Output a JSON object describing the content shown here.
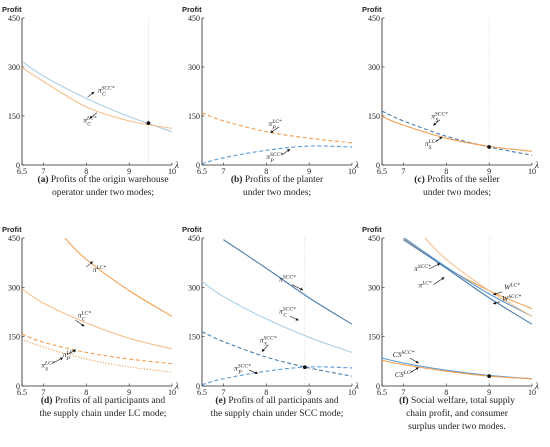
{
  "colors": {
    "orange": "#f0a050",
    "light_orange": "#f5c08a",
    "blue": "#5b9bd5",
    "light_blue": "#a9cfe6",
    "steel_blue": "#4a7fb0",
    "dot": "#111111"
  },
  "chart_data": [
    {
      "type": "line",
      "caption_label": "(a)",
      "caption": [
        "Profits of the origin warehouse",
        "operator under two modes;"
      ],
      "ylabel": "Profit",
      "xlabel": "λ",
      "xlim": [
        6.5,
        10
      ],
      "ylim": [
        0,
        450
      ],
      "xticks": [
        "6.5",
        "7",
        "8",
        "9",
        "10"
      ],
      "yticks": [
        "0",
        "150",
        "300",
        "450"
      ],
      "series": [
        {
          "id": "pi_C_SCC",
          "annotation": "π_C^{SCC*}",
          "style": "solid",
          "color": "light_blue",
          "x": [
            6.5,
            7,
            8,
            9,
            10
          ],
          "y": [
            318,
            272,
            204,
            148,
            102
          ]
        },
        {
          "id": "pi_C_LC",
          "annotation": "π_C^{LC*}",
          "style": "solid",
          "color": "light_orange",
          "x": [
            6.5,
            7,
            8,
            9,
            10
          ],
          "y": [
            298,
            256,
            178,
            135,
            112
          ]
        }
      ],
      "point": {
        "x": 9.45,
        "y": 128
      },
      "vref": 9.45,
      "labels": [
        {
          "text": "π",
          "sup": "SCC*",
          "sub": "C",
          "ax": 8.27,
          "ay": 222,
          "arrow": [
            8.03,
            208,
            8.18,
            223
          ]
        },
        {
          "text": "π",
          "sup": "LC*",
          "sub": "C",
          "ax": 7.93,
          "ay": 130,
          "arrow": [
            8.25,
            160,
            8.08,
            143
          ]
        }
      ]
    },
    {
      "type": "line",
      "caption_label": "(b)",
      "caption": [
        "Profits of the planter",
        "under two modes;"
      ],
      "ylabel": "Profit",
      "xlabel": "λ",
      "xlim": [
        6.5,
        10
      ],
      "ylim": [
        0,
        450
      ],
      "xticks": [
        "6.5",
        "7",
        "8",
        "9",
        "10"
      ],
      "yticks": [
        "0",
        "150",
        "300",
        "450"
      ],
      "series": [
        {
          "id": "pi_P_LC",
          "annotation": "π_P^{LC*}",
          "style": "dashed",
          "color": "orange",
          "x": [
            6.5,
            7,
            8,
            9,
            10
          ],
          "y": [
            160,
            135,
            102,
            82,
            68
          ]
        },
        {
          "id": "pi_P_SCC",
          "annotation": "π_P^{SCC*}",
          "style": "dashed",
          "color": "blue",
          "x": [
            6.5,
            7,
            8,
            9,
            10
          ],
          "y": [
            4,
            22,
            45,
            58,
            55
          ]
        }
      ],
      "labels": [
        {
          "text": "π",
          "sup": "LC*",
          "sub": "P",
          "ax": 8.05,
          "ay": 120,
          "arrow": [
            8.3,
            117,
            8.1,
            99
          ]
        },
        {
          "text": "π",
          "sup": "SCC*",
          "sub": "P",
          "ax": 8.0,
          "ay": 18,
          "arrow": [
            8.35,
            30,
            8.55,
            48
          ]
        }
      ]
    },
    {
      "type": "line",
      "caption_label": "(c)",
      "caption": [
        "Profits of the seller",
        "under two modes;"
      ],
      "ylabel": "Profit",
      "xlabel": "λ",
      "xlim": [
        6.5,
        10
      ],
      "ylim": [
        0,
        450
      ],
      "xticks": [
        "6.5",
        "7",
        "8",
        "9",
        "10"
      ],
      "yticks": [
        "0",
        "150",
        "300",
        "450"
      ],
      "series": [
        {
          "id": "pi_S_SCC",
          "annotation": "π_S^{SCC*}",
          "style": "dashed",
          "color": "steel_blue",
          "x": [
            6.5,
            7,
            8,
            9,
            10
          ],
          "y": [
            165,
            135,
            88,
            55,
            30
          ]
        },
        {
          "id": "pi_S_LC",
          "annotation": "π_S^{LC*}",
          "style": "solid",
          "color": "orange",
          "x": [
            6.5,
            7,
            8,
            9,
            10
          ],
          "y": [
            148,
            122,
            82,
            57,
            42
          ]
        }
      ],
      "point": {
        "x": 9.0,
        "y": 55
      },
      "vref": 9.0,
      "labels": [
        {
          "text": "π",
          "sup": "SCC*",
          "sub": "S",
          "ax": 7.65,
          "ay": 143,
          "arrow": [
            7.85,
            138,
            7.7,
            122
          ]
        },
        {
          "text": "π",
          "sup": "LC*",
          "sub": "S",
          "ax": 7.5,
          "ay": 58,
          "arrow": [
            7.75,
            70,
            7.9,
            86
          ]
        }
      ]
    },
    {
      "type": "line",
      "caption_label": "(d)",
      "caption": [
        "Profits of all participants and",
        "the supply chain under LC mode;"
      ],
      "ylabel": "Profit",
      "xlabel": "λ",
      "xlim": [
        6.5,
        10
      ],
      "ylim": [
        0,
        450
      ],
      "xticks": [
        "6.5",
        "7",
        "8",
        "9",
        "10"
      ],
      "yticks": [
        "0",
        "150",
        "300",
        "450"
      ],
      "series": [
        {
          "id": "pi_LC",
          "annotation": "π^{LC*}",
          "style": "solid",
          "color": "orange",
          "x": [
            7.5,
            8,
            9,
            10
          ],
          "y": [
            450,
            385,
            290,
            212
          ]
        },
        {
          "id": "pi_C_LC_d",
          "annotation": "π_C^{LC*}",
          "style": "solid",
          "color": "light_orange",
          "x": [
            6.5,
            7,
            8,
            9,
            10
          ],
          "y": [
            295,
            252,
            192,
            145,
            113
          ]
        },
        {
          "id": "pi_P_LC_d",
          "annotation": "π_P^{LC*}",
          "style": "dashed",
          "color": "orange",
          "x": [
            6.5,
            7,
            8,
            9,
            10
          ],
          "y": [
            158,
            133,
            102,
            82,
            68
          ]
        },
        {
          "id": "pi_S_LC_d",
          "annotation": "π_S^{LC*}",
          "style": "dotted",
          "color": "orange",
          "x": [
            6.5,
            7,
            8,
            9,
            10
          ],
          "y": [
            142,
            118,
            82,
            58,
            42
          ]
        }
      ],
      "labels": [
        {
          "text": "π",
          "sup": "LC*",
          "sub": "",
          "ax": 8.15,
          "ay": 347,
          "arrow": [
            8.0,
            362,
            8.15,
            378
          ]
        },
        {
          "text": "π",
          "sup": "LC*",
          "sub": "C",
          "ax": 7.8,
          "ay": 208,
          "arrow": [
            7.75,
            200,
            7.95,
            182
          ]
        },
        {
          "text": "π",
          "sup": "LC*",
          "sub": "P",
          "ax": 7.45,
          "ay": 88,
          "arrow": [
            7.55,
            95,
            7.75,
            110
          ]
        },
        {
          "text": "π",
          "sup": "LC*",
          "sub": "S",
          "ax": 6.95,
          "ay": 56,
          "arrow": [
            7.2,
            68,
            7.45,
            86
          ]
        }
      ]
    },
    {
      "type": "line",
      "caption_label": "(e)",
      "caption": [
        "Profits of all participants and",
        "the supply chain under SCC mode;"
      ],
      "ylabel": "Profit",
      "xlabel": "λ",
      "xlim": [
        6.5,
        10
      ],
      "ylim": [
        0,
        450
      ],
      "xticks": [
        "6.5",
        "7",
        "8",
        "9",
        "10"
      ],
      "yticks": [
        "0",
        "150",
        "300",
        "450"
      ],
      "series": [
        {
          "id": "pi_SCC",
          "annotation": "π^{SCC*}",
          "style": "solid",
          "color": "steel_blue",
          "x": [
            7,
            8,
            9,
            10
          ],
          "y": [
            445,
            358,
            268,
            188
          ]
        },
        {
          "id": "pi_C_SCC_e",
          "annotation": "π_C^{SCC*}",
          "style": "solid",
          "color": "light_blue",
          "x": [
            6.5,
            7,
            8,
            9,
            10
          ],
          "y": [
            318,
            272,
            204,
            148,
            102
          ]
        },
        {
          "id": "pi_S_SCC_e",
          "annotation": "π_S^{SCC*}",
          "style": "dashed",
          "color": "steel_blue",
          "x": [
            6.5,
            7,
            8,
            9,
            10
          ],
          "y": [
            165,
            135,
            88,
            55,
            30
          ]
        },
        {
          "id": "pi_P_SCC_e",
          "annotation": "π_P^{SCC*}",
          "style": "dashed",
          "color": "blue",
          "x": [
            6.5,
            7,
            8,
            9,
            10
          ],
          "y": [
            4,
            22,
            45,
            58,
            55
          ]
        }
      ],
      "point": {
        "x": 8.9,
        "y": 57
      },
      "vref": 8.9,
      "labels": [
        {
          "text": "π",
          "sup": "SCC*",
          "sub": "",
          "ax": 8.3,
          "ay": 318,
          "arrow": [
            8.6,
            308,
            8.85,
            292
          ]
        },
        {
          "text": "π",
          "sup": "SCC*",
          "sub": "C",
          "ax": 8.3,
          "ay": 220,
          "arrow": [
            8.55,
            212,
            8.75,
            200
          ]
        },
        {
          "text": "π",
          "sup": "SCC*",
          "sub": "S",
          "ax": 7.85,
          "ay": 133,
          "arrow": [
            8.05,
            125,
            7.9,
            105
          ]
        },
        {
          "text": "π",
          "sup": "SCC*",
          "sub": "P",
          "ax": 7.25,
          "ay": 47,
          "arrow": [
            7.6,
            48,
            7.8,
            38
          ]
        }
      ]
    },
    {
      "type": "line",
      "caption_label": "(f)",
      "caption": [
        "Social welfare, total supply",
        "chain profit, and consumer",
        "surplus under two modes."
      ],
      "ylabel": "Profit",
      "xlabel": "λ",
      "xlim": [
        6.5,
        10
      ],
      "ylim": [
        0,
        450
      ],
      "xticks": [
        "6.5",
        "7",
        "8",
        "9",
        "10"
      ],
      "yticks": [
        "0",
        "150",
        "300",
        "450"
      ],
      "series": [
        {
          "id": "W_LC",
          "annotation": "W^{LC*}",
          "style": "solid",
          "color": "orange",
          "x": [
            7,
            8,
            9,
            10
          ],
          "y": [
            450,
            360,
            290,
            235
          ]
        },
        {
          "id": "W_SCC",
          "annotation": "W^{SCC*}",
          "style": "solid",
          "color": "blue",
          "x": [
            7,
            8,
            9,
            10
          ],
          "y": [
            452,
            362,
            280,
            212
          ]
        },
        {
          "id": "pi_SCC_f",
          "annotation": "π^{SCC*}",
          "style": "solid",
          "color": "steel_blue",
          "x": [
            7,
            8,
            9,
            10
          ],
          "y": [
            445,
            358,
            268,
            188
          ]
        },
        {
          "id": "pi_LC_f",
          "annotation": "π^{LC*}",
          "style": "solid",
          "color": "light_orange",
          "x": [
            7.5,
            8,
            9,
            10
          ],
          "y": [
            450,
            385,
            290,
            212
          ]
        },
        {
          "id": "CS_SCC",
          "annotation": "CS^{SCC*}",
          "style": "solid",
          "color": "blue",
          "x": [
            6.5,
            7,
            8,
            9,
            10
          ],
          "y": [
            85,
            70,
            48,
            32,
            22
          ]
        },
        {
          "id": "CS_LC",
          "annotation": "CS^{LC*}",
          "style": "solid",
          "color": "orange",
          "x": [
            6.5,
            7,
            8,
            9,
            10
          ],
          "y": [
            78,
            65,
            45,
            30,
            22
          ]
        }
      ],
      "point": {
        "x": 9.0,
        "y": 30
      },
      "vref": 9.0,
      "labels": [
        {
          "text": "π",
          "sup": "SCC*",
          "sub": "",
          "ax": 7.25,
          "ay": 350,
          "arrow": [
            7.6,
            356,
            7.85,
            372
          ]
        },
        {
          "text": "π",
          "sup": "LC*",
          "sub": "",
          "ax": 7.35,
          "ay": 300,
          "arrow": [
            7.7,
            308,
            7.95,
            330
          ]
        },
        {
          "text": "W",
          "sup": "LC*",
          "sub": "",
          "ax": 9.35,
          "ay": 293,
          "arrow": [
            9.3,
            286,
            9.1,
            278
          ]
        },
        {
          "text": "W",
          "sup": "SCC*",
          "sub": "",
          "ax": 9.3,
          "ay": 258,
          "arrow": [
            9.25,
            256,
            9.1,
            250
          ]
        },
        {
          "text": "CS",
          "sup": "SCC*",
          "sub": "",
          "ax": 6.75,
          "ay": 88,
          "arrow": [
            7.15,
            85,
            7.35,
            70
          ]
        },
        {
          "text": "CS",
          "sup": "LC*",
          "sub": "",
          "ax": 6.8,
          "ay": 28,
          "arrow": [
            7.15,
            40,
            7.35,
            56
          ]
        }
      ]
    }
  ]
}
